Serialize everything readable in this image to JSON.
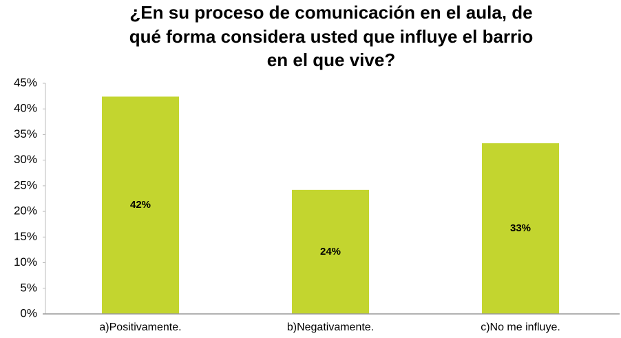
{
  "chart_data": {
    "type": "bar",
    "title": [
      "¿En su proceso de comunicación en el aula, de",
      "qué forma considera usted que influye el barrio",
      "en el que vive?"
    ],
    "categories": [
      "a)Positivamente.",
      "b)Negativamente.",
      "c)No me influye."
    ],
    "values": [
      42.4,
      24.2,
      33.3
    ],
    "value_labels": [
      "42%",
      "24%",
      "33%"
    ],
    "color": "#c3d52f",
    "ylim": [
      0,
      45
    ],
    "yticks": [
      {
        "value": 0,
        "label": "0%"
      },
      {
        "value": 5,
        "label": "5%"
      },
      {
        "value": 10,
        "label": "10%"
      },
      {
        "value": 15,
        "label": "15%"
      },
      {
        "value": 20,
        "label": "20%"
      },
      {
        "value": 25,
        "label": "25%"
      },
      {
        "value": 30,
        "label": "30%"
      },
      {
        "value": 35,
        "label": "35%"
      },
      {
        "value": 40,
        "label": "40%"
      },
      {
        "value": 45,
        "label": "45%"
      }
    ],
    "grid": false
  }
}
